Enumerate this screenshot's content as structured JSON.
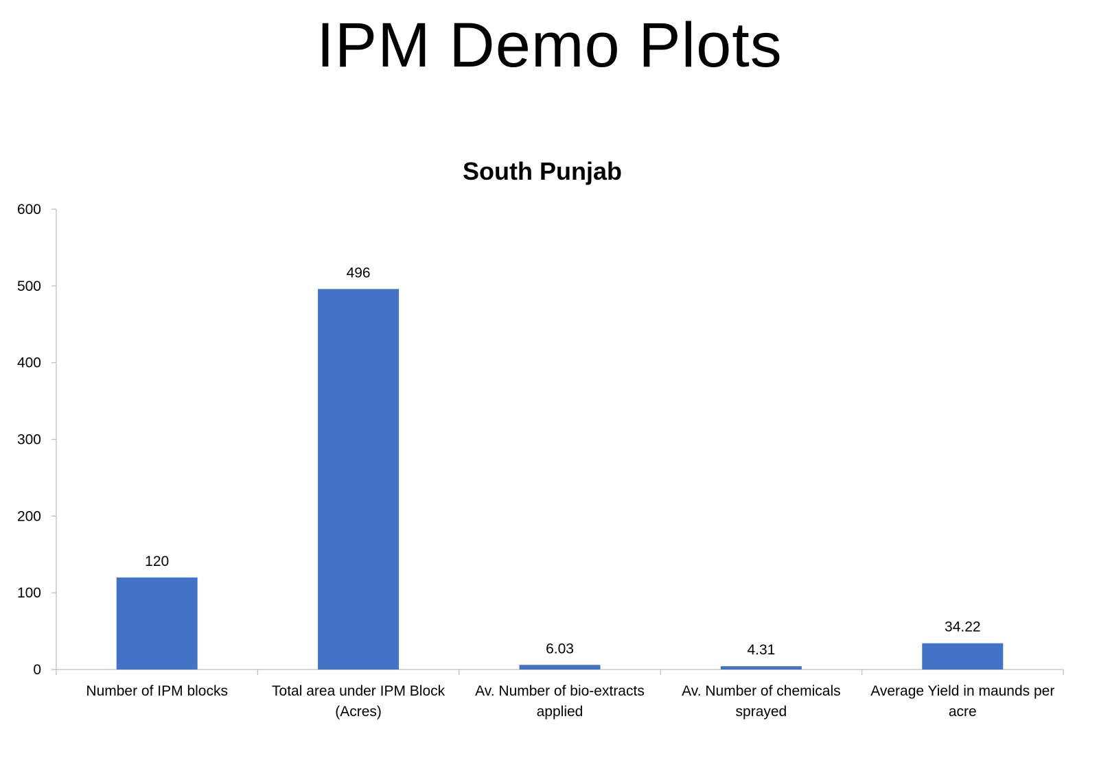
{
  "slide": {
    "title": "IPM Demo Plots"
  },
  "colors": {
    "bar": "#4472C4",
    "axis": "#BFBFBF",
    "text": "#000000"
  },
  "chart_data": {
    "type": "bar",
    "title": "South Punjab",
    "xlabel": "",
    "ylabel": "",
    "categories": [
      [
        "Number of IPM blocks"
      ],
      [
        "Total area under IPM Block",
        "(Acres)"
      ],
      [
        "Av. Number of bio-extracts",
        "applied"
      ],
      [
        "Av. Number of chemicals",
        "sprayed"
      ],
      [
        "Average Yield in maunds per",
        "acre"
      ]
    ],
    "values": [
      120,
      496,
      6.03,
      4.31,
      34.22
    ],
    "data_labels": [
      "120",
      "496",
      "6.03",
      "4.31",
      "34.22"
    ],
    "ylim": [
      0,
      600
    ],
    "yticks": [
      0,
      100,
      200,
      300,
      400,
      500,
      600
    ],
    "grid": false,
    "legend": "none"
  }
}
